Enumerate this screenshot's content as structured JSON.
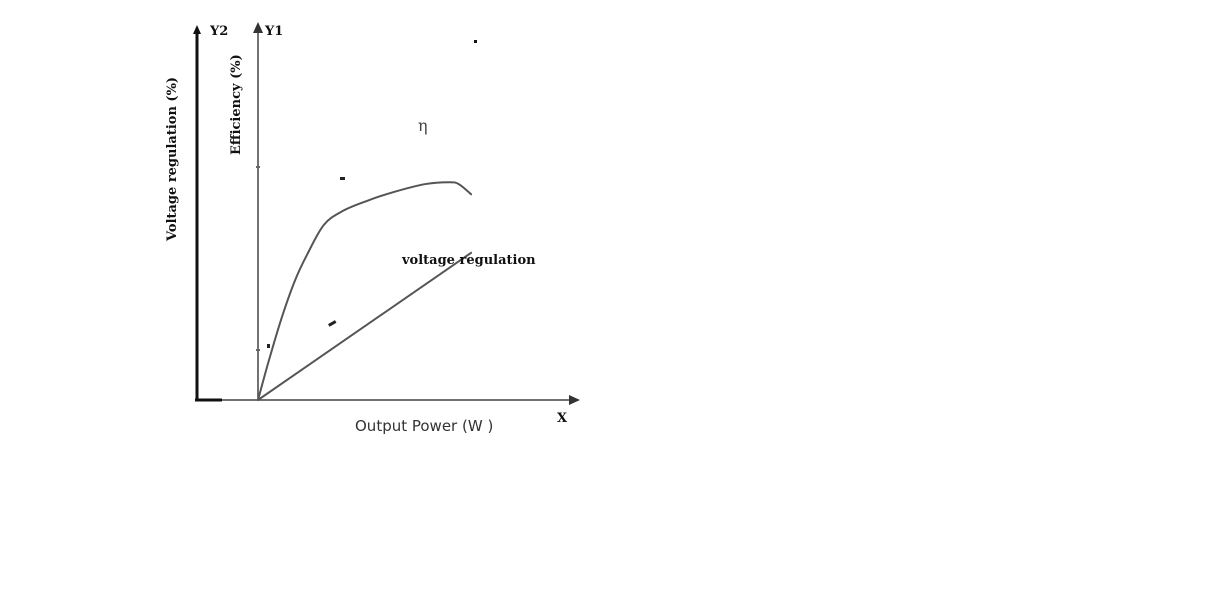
{
  "chart_data": {
    "type": "line",
    "xlabel": "Output Power (W )",
    "x_axis_name": "X",
    "y1_axis_name": "Y1",
    "y2_axis_name": "Y2",
    "y1label": "Efficiency (%)",
    "y2label": "Voltage regulation (%)",
    "series": [
      {
        "name": "η",
        "color": "#555555",
        "points": [
          [
            0,
            0
          ],
          [
            2,
            9
          ],
          [
            5,
            22
          ],
          [
            10,
            42
          ],
          [
            15,
            59
          ],
          [
            20,
            72
          ],
          [
            27,
            87
          ],
          [
            35,
            94
          ],
          [
            45,
            99
          ],
          [
            55,
            103
          ],
          [
            68,
            107
          ],
          [
            78,
            108
          ],
          [
            82,
            107
          ],
          [
            87,
            102
          ]
        ]
      },
      {
        "name": "voltage regulation",
        "color": "#555555",
        "points": [
          [
            0,
            0
          ],
          [
            87,
            73
          ]
        ]
      }
    ],
    "xlim": [
      0,
      100
    ],
    "ylim": [
      0,
      120
    ],
    "grid": false
  }
}
